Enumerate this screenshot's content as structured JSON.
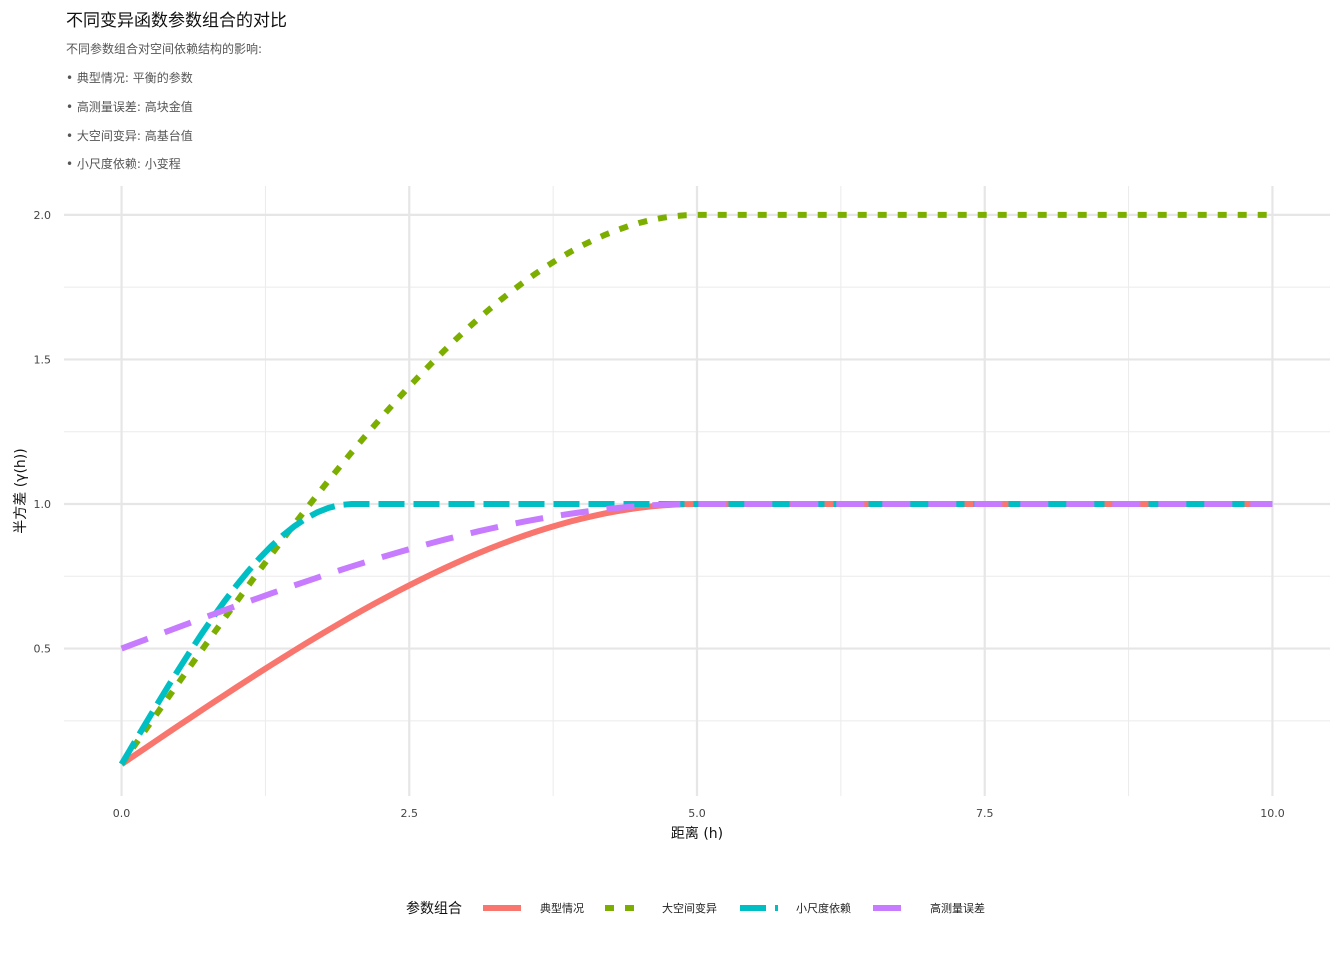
{
  "chart_data": {
    "type": "line",
    "title": "不同变异函数参数组合的对比",
    "subtitle_lines": [
      "不同参数组合对空间依赖结构的影响:",
      "• 典型情况: 平衡的参数",
      "• 高测量误差: 高块金值",
      "• 大空间变异: 高基台值",
      "• 小尺度依赖: 小变程"
    ],
    "xlabel": "距离 (h)",
    "ylabel": "半方差 (γ(h))",
    "xlim": [
      -0.5,
      10.5
    ],
    "ylim": [
      -0.01,
      2.1
    ],
    "x_ticks": [
      0.0,
      2.5,
      5.0,
      7.5,
      10.0
    ],
    "x_tick_labels": [
      "0.0",
      "2.5",
      "5.0",
      "7.5",
      "10.0"
    ],
    "y_ticks": [
      0.5,
      1.0,
      1.5,
      2.0
    ],
    "y_tick_labels": [
      "0.5",
      "1.0",
      "1.5",
      "2.0"
    ],
    "grid": true,
    "legend": {
      "title": "参数组合",
      "position": "bottom"
    },
    "series": [
      {
        "name": "典型情况",
        "model": "spherical",
        "nugget": 0.1,
        "sill": 1.0,
        "range": 5.0,
        "color": "#F8766D",
        "linetype": "solid"
      },
      {
        "name": "大空间变异",
        "model": "spherical",
        "nugget": 0.1,
        "sill": 2.0,
        "range": 5.0,
        "color": "#7CAE00",
        "linetype": "dotted"
      },
      {
        "name": "小尺度依赖",
        "model": "spherical",
        "nugget": 0.1,
        "sill": 1.0,
        "range": 2.0,
        "color": "#00BFC4",
        "linetype": "dashed"
      },
      {
        "name": "高测量误差",
        "model": "spherical",
        "nugget": 0.5,
        "sill": 1.0,
        "range": 5.0,
        "color": "#C77CFF",
        "linetype": "longdash"
      }
    ],
    "x_step": 0.1
  }
}
